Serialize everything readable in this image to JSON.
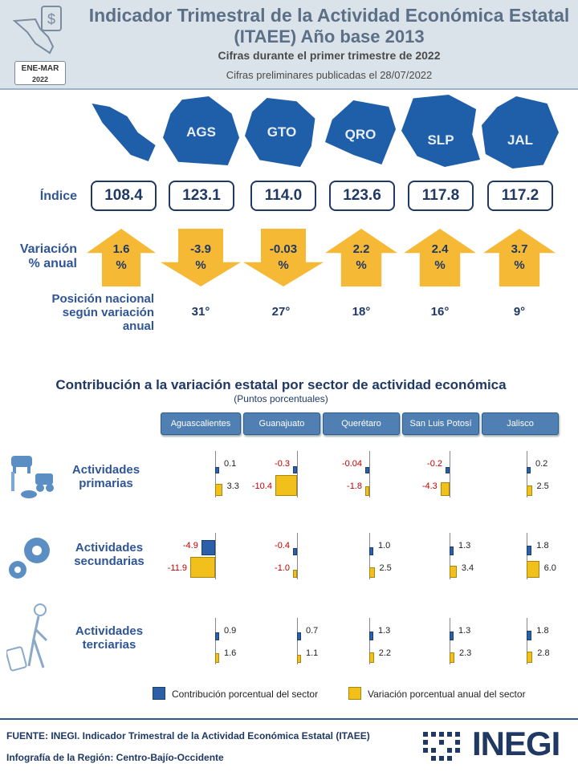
{
  "header": {
    "title_line1": "Indicador Trimestral de la Actividad Económica Estatal",
    "title_line2": "(ITAEE) Año base 2013",
    "subtitle": "Cifras durante  el primer trimestre  de 2022",
    "prelim": "Cifras preliminares publicadas el 28/07/2022",
    "badge_line1": "ENE-MAR",
    "badge_line2": "2022"
  },
  "states": [
    {
      "label": "",
      "indice": "108.4",
      "variacion": "1.6",
      "dir": "up",
      "posicion": ""
    },
    {
      "label": "AGS",
      "indice": "123.1",
      "variacion": "-3.9",
      "dir": "down",
      "posicion": "31°"
    },
    {
      "label": "GTO",
      "indice": "114.0",
      "variacion": "-0.03",
      "dir": "down",
      "posicion": "27°"
    },
    {
      "label": "QRO",
      "indice": "123.6",
      "variacion": "2.2",
      "dir": "up",
      "posicion": "18°"
    },
    {
      "label": "SLP",
      "indice": "117.8",
      "variacion": "2.4",
      "dir": "up",
      "posicion": "16°"
    },
    {
      "label": "JAL",
      "indice": "117.2",
      "variacion": "3.7",
      "dir": "up",
      "posicion": "9°"
    }
  ],
  "labels": {
    "indice": "Índice",
    "variacion_1": "Variación",
    "variacion_2": "% anual",
    "pct": "%",
    "posicion_1": "Posición nacional",
    "posicion_2": "según variación",
    "posicion_3": "anual"
  },
  "contrib": {
    "title": "Contribución a la variación estatal por sector de actividad económica",
    "subtitle": "(Puntos porcentuales)",
    "tabs": [
      "Aguascalientes",
      "Guanajuato",
      "Querétaro",
      "San Luis Potosí",
      "Jalisco"
    ],
    "sectors": [
      {
        "line1": "Actividades",
        "line2": "primarias",
        "contrib": [
          "0.1",
          "-0.3",
          "-0.04",
          "-0.2",
          "0.2"
        ],
        "variacion": [
          "3.3",
          "-10.4",
          "-1.8",
          "-4.3",
          "2.5"
        ]
      },
      {
        "line1": "Actividades",
        "line2": "secundarias",
        "contrib": [
          "-4.9",
          "-0.4",
          "1.0",
          "1.3",
          "1.8"
        ],
        "variacion": [
          "-11.9",
          "-1.0",
          "2.5",
          "3.4",
          "6.0"
        ]
      },
      {
        "line1": "Actividades",
        "line2": "terciarias",
        "contrib": [
          "0.9",
          "0.7",
          "1.3",
          "1.3",
          "1.8"
        ],
        "variacion": [
          "1.6",
          "1.1",
          "2.2",
          "2.3",
          "2.8"
        ]
      }
    ],
    "legend": {
      "contrib": "Contribución porcentual del sector",
      "variacion": "Variación porcentual anual del sector"
    }
  },
  "footer": {
    "line1": "FUENTE:  INEGI. Indicador Trimestral  de la Actividad Económica Estatal (ITAEE)",
    "line2": "Infografía  de la Región:  Centro-Bajío-Occidente",
    "logo": "INEGI"
  },
  "colors": {
    "blue": "#2b5fa8",
    "gold": "#f2c01a",
    "navy": "#1f3864",
    "negative": "#c00000"
  }
}
